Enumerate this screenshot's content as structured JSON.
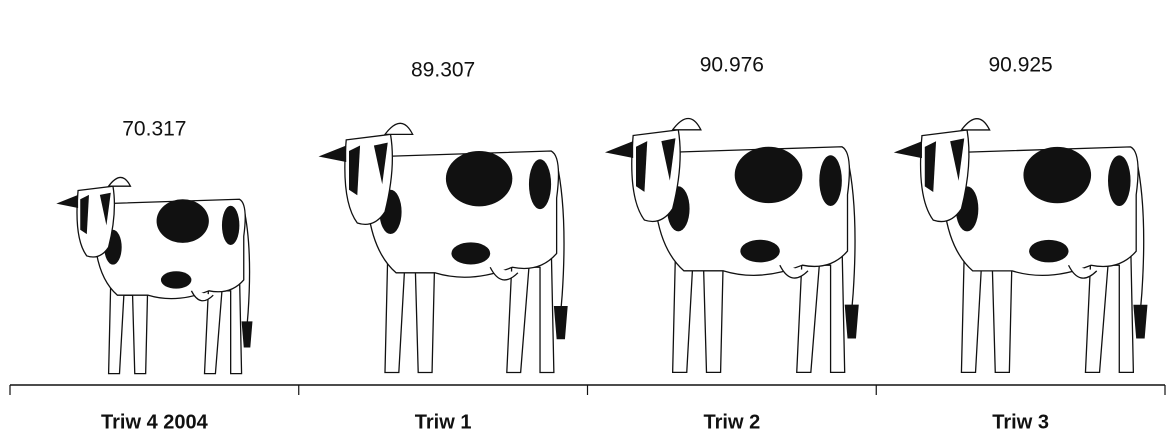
{
  "chart_data": {
    "type": "pictogram",
    "categories": [
      "Triw 4 2004",
      "Triw 1",
      "Triw 2",
      "Triw 3"
    ],
    "values": [
      70.317,
      89.307,
      90.976,
      90.925
    ]
  }
}
